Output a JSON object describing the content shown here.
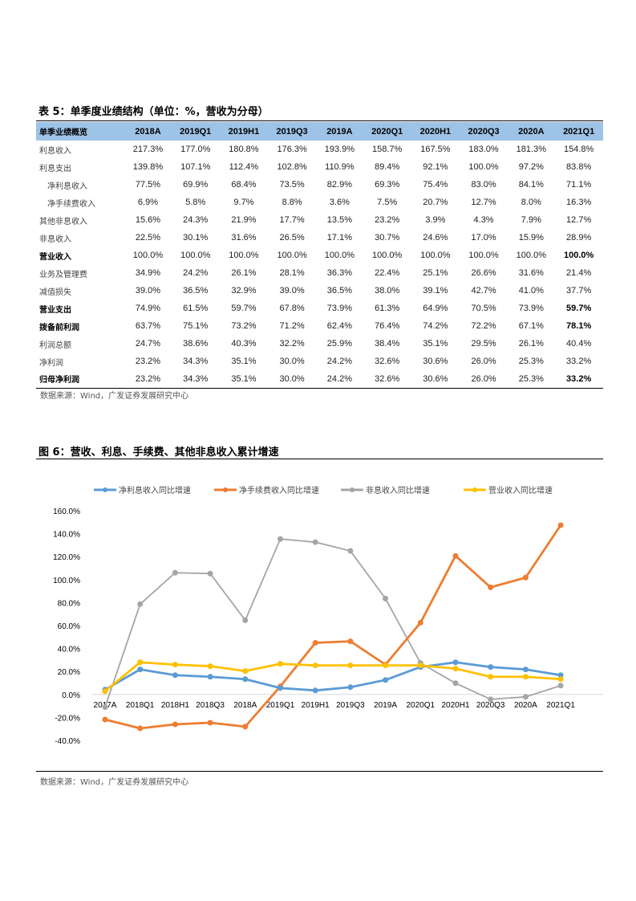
{
  "table": {
    "title": "表 5：单季度业绩结构（单位：%，营收为分母）",
    "columns": [
      "单季业绩概览",
      "2018A",
      "2019Q1",
      "2019H1",
      "2019Q3",
      "2019A",
      "2020Q1",
      "2020H1",
      "2020Q3",
      "2020A",
      "2021Q1"
    ],
    "rows": [
      {
        "label": "利息收入",
        "indent": false,
        "bold": false,
        "values": [
          "217.3%",
          "177.0%",
          "180.8%",
          "176.3%",
          "193.9%",
          "158.7%",
          "167.5%",
          "183.0%",
          "181.3%",
          "154.8%"
        ]
      },
      {
        "label": "利息支出",
        "indent": false,
        "bold": false,
        "values": [
          "139.8%",
          "107.1%",
          "112.4%",
          "102.8%",
          "110.9%",
          "89.4%",
          "92.1%",
          "100.0%",
          "97.2%",
          "83.8%"
        ]
      },
      {
        "label": "净利息收入",
        "indent": true,
        "bold": false,
        "values": [
          "77.5%",
          "69.9%",
          "68.4%",
          "73.5%",
          "82.9%",
          "69.3%",
          "75.4%",
          "83.0%",
          "84.1%",
          "71.1%"
        ]
      },
      {
        "label": "净手续费收入",
        "indent": true,
        "bold": false,
        "values": [
          "6.9%",
          "5.8%",
          "9.7%",
          "8.8%",
          "3.6%",
          "7.5%",
          "20.7%",
          "12.7%",
          "8.0%",
          "16.3%"
        ]
      },
      {
        "label": "其他非息收入",
        "indent": false,
        "bold": false,
        "values": [
          "15.6%",
          "24.3%",
          "21.9%",
          "17.7%",
          "13.5%",
          "23.2%",
          "3.9%",
          "4.3%",
          "7.9%",
          "12.7%"
        ]
      },
      {
        "label": "非息收入",
        "indent": false,
        "bold": false,
        "values": [
          "22.5%",
          "30.1%",
          "31.6%",
          "26.5%",
          "17.1%",
          "30.7%",
          "24.6%",
          "17.0%",
          "15.9%",
          "28.9%"
        ]
      },
      {
        "label": "营业收入",
        "indent": false,
        "bold": true,
        "values": [
          "100.0%",
          "100.0%",
          "100.0%",
          "100.0%",
          "100.0%",
          "100.0%",
          "100.0%",
          "100.0%",
          "100.0%",
          "100.0%"
        ]
      },
      {
        "label": "业务及管理费",
        "indent": false,
        "bold": false,
        "values": [
          "34.9%",
          "24.2%",
          "26.1%",
          "28.1%",
          "36.3%",
          "22.4%",
          "25.1%",
          "26.6%",
          "31.6%",
          "21.4%"
        ]
      },
      {
        "label": "减值损失",
        "indent": false,
        "bold": false,
        "values": [
          "39.0%",
          "36.5%",
          "32.9%",
          "39.0%",
          "36.5%",
          "38.0%",
          "39.1%",
          "42.7%",
          "41.0%",
          "37.7%"
        ]
      },
      {
        "label": "营业支出",
        "indent": false,
        "bold": true,
        "values": [
          "74.9%",
          "61.5%",
          "59.7%",
          "67.8%",
          "73.9%",
          "61.3%",
          "64.9%",
          "70.5%",
          "73.9%",
          "59.7%"
        ]
      },
      {
        "label": "拨备前利润",
        "indent": false,
        "bold": true,
        "values": [
          "63.7%",
          "75.1%",
          "73.2%",
          "71.2%",
          "62.4%",
          "76.4%",
          "74.2%",
          "72.2%",
          "67.1%",
          "78.1%"
        ]
      },
      {
        "label": "利润总额",
        "indent": false,
        "bold": false,
        "values": [
          "24.7%",
          "38.6%",
          "40.3%",
          "32.2%",
          "25.9%",
          "38.4%",
          "35.1%",
          "29.5%",
          "26.1%",
          "40.4%"
        ]
      },
      {
        "label": "净利润",
        "indent": false,
        "bold": false,
        "values": [
          "23.2%",
          "34.3%",
          "35.1%",
          "30.0%",
          "24.2%",
          "32.6%",
          "30.6%",
          "26.0%",
          "25.3%",
          "33.2%"
        ]
      },
      {
        "label": "归母净利润",
        "indent": false,
        "bold": true,
        "values": [
          "23.2%",
          "34.3%",
          "35.1%",
          "30.0%",
          "24.2%",
          "32.6%",
          "30.6%",
          "26.0%",
          "25.3%",
          "33.2%"
        ]
      }
    ],
    "header_color": "#9dc3e6",
    "source": "数据来源：Wind，广发证券发展研究中心"
  },
  "figure": {
    "title": "图 6：营收、利息、手续费、其他非息收入累计增速",
    "source": "数据来源：Wind，广发证券发展研究中心"
  },
  "chart_data": {
    "type": "line",
    "title": "",
    "xlabel": "",
    "ylabel": "",
    "ylim": [
      -40,
      160
    ],
    "yticks": [
      "160.0%",
      "140.0%",
      "120.0%",
      "100.0%",
      "80.0%",
      "60.0%",
      "40.0%",
      "20.0%",
      "0.0%",
      "-20.0%",
      "-40.0%"
    ],
    "ytick_values": [
      160,
      140,
      120,
      100,
      80,
      60,
      40,
      20,
      0,
      -20,
      -40
    ],
    "grid": false,
    "legend": "top",
    "categories": [
      "2017A",
      "2018Q1",
      "2018H1",
      "2018Q3",
      "2018A",
      "2019Q1",
      "2019H1",
      "2019Q3",
      "2019A",
      "2020Q1",
      "2020H1",
      "2020Q3",
      "2020A",
      "2021Q1"
    ],
    "series": [
      {
        "name": "净利息收入同比增速",
        "color": "#5b9bd5",
        "values": [
          4.2,
          21.8,
          16.8,
          15.4,
          13.3,
          5.6,
          3.5,
          6.3,
          12.6,
          23.9,
          28.0,
          23.9,
          21.8,
          16.8
        ]
      },
      {
        "name": "净手续费收入同比增速",
        "color": "#ed7d31",
        "values": [
          -21.8,
          -29.5,
          -26.0,
          -24.6,
          -28.0,
          7.0,
          45.0,
          46.3,
          26.0,
          62.5,
          120.7,
          93.3,
          101.8,
          147.4
        ]
      },
      {
        "name": "非息收入同比增速",
        "color": "#a5a5a5",
        "values": [
          -11.0,
          78.6,
          106.0,
          105.3,
          64.6,
          135.4,
          132.6,
          125.0,
          83.5,
          27.4,
          9.8,
          -4.2,
          -2.1,
          7.7
        ]
      },
      {
        "name": "营业收入同比增速",
        "color": "#ffc000",
        "values": [
          2.8,
          28.0,
          26.0,
          24.6,
          20.4,
          26.7,
          25.3,
          25.3,
          25.3,
          25.3,
          22.5,
          15.4,
          15.4,
          13.3
        ]
      }
    ]
  }
}
